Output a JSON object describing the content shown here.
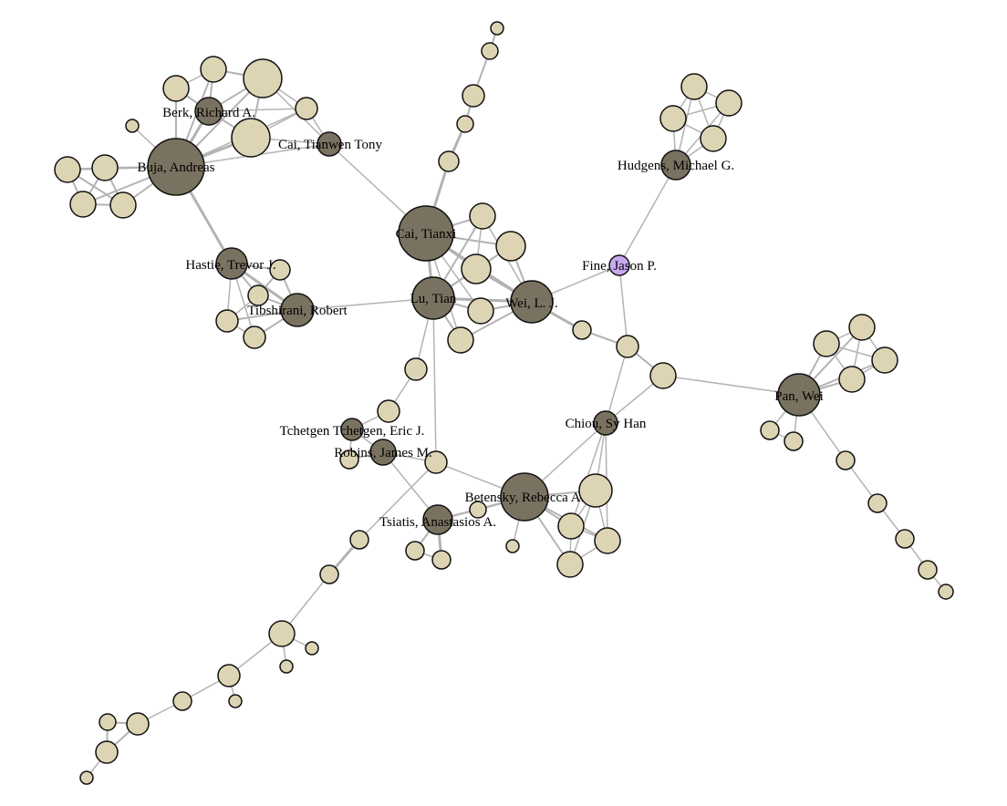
{
  "colors": {
    "author": "#7a7260",
    "coauthor": "#ddd4b4",
    "focus": "#c9a8f0",
    "edge": "#b3b3b3"
  },
  "labels": {
    "buja": "Buja, Andreas",
    "berk": "Berk, Richard A.",
    "cai_tianwen": "Cai, Tianwen Tony",
    "hastie": "Hastie, Trevor J.",
    "tibshirani": "Tibshirani, Robert",
    "cai_tianxi": "Cai, Tianxi",
    "lu_tian": "Lu, Tian",
    "wei": "Wei, L. J.",
    "fine": "Fine, Jason P.",
    "hudgens": "Hudgens, Michael G.",
    "pan": "Pan, Wei",
    "chiou": "Chiou, Sy Han",
    "tchetgen": "Tchetgen Tchetgen, Eric J.",
    "robins": "Robins, James M.",
    "betensky": "Betensky, Rebecca A.",
    "tsiatis": "Tsiatis, Anastasios A."
  }
}
